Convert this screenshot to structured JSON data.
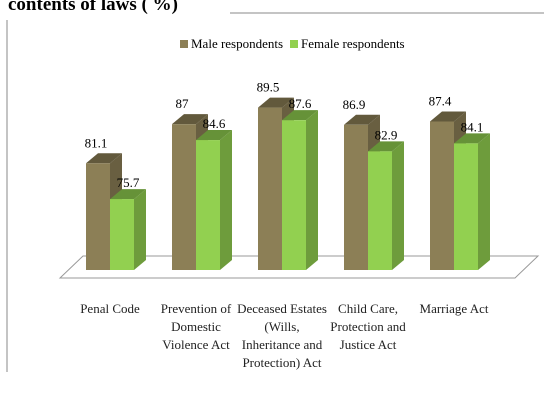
{
  "chart_data": {
    "type": "bar3d",
    "title": "contents of laws ( %)",
    "categories": [
      "Penal Code",
      "Prevention of Domestic Violence Act",
      "Deceased Estates (Wills, Inheritance and Protection) Act",
      "Child Care, Protection and Justice Act",
      "Marriage Act"
    ],
    "series": [
      {
        "name": "Male respondents",
        "color": "#8c7f56",
        "values": [
          81.1,
          87,
          89.5,
          86.9,
          87.4
        ]
      },
      {
        "name": "Female respondents",
        "color": "#92d050",
        "values": [
          75.7,
          84.6,
          87.6,
          82.9,
          84.1
        ]
      }
    ],
    "ylim": [
      65,
      92
    ]
  }
}
